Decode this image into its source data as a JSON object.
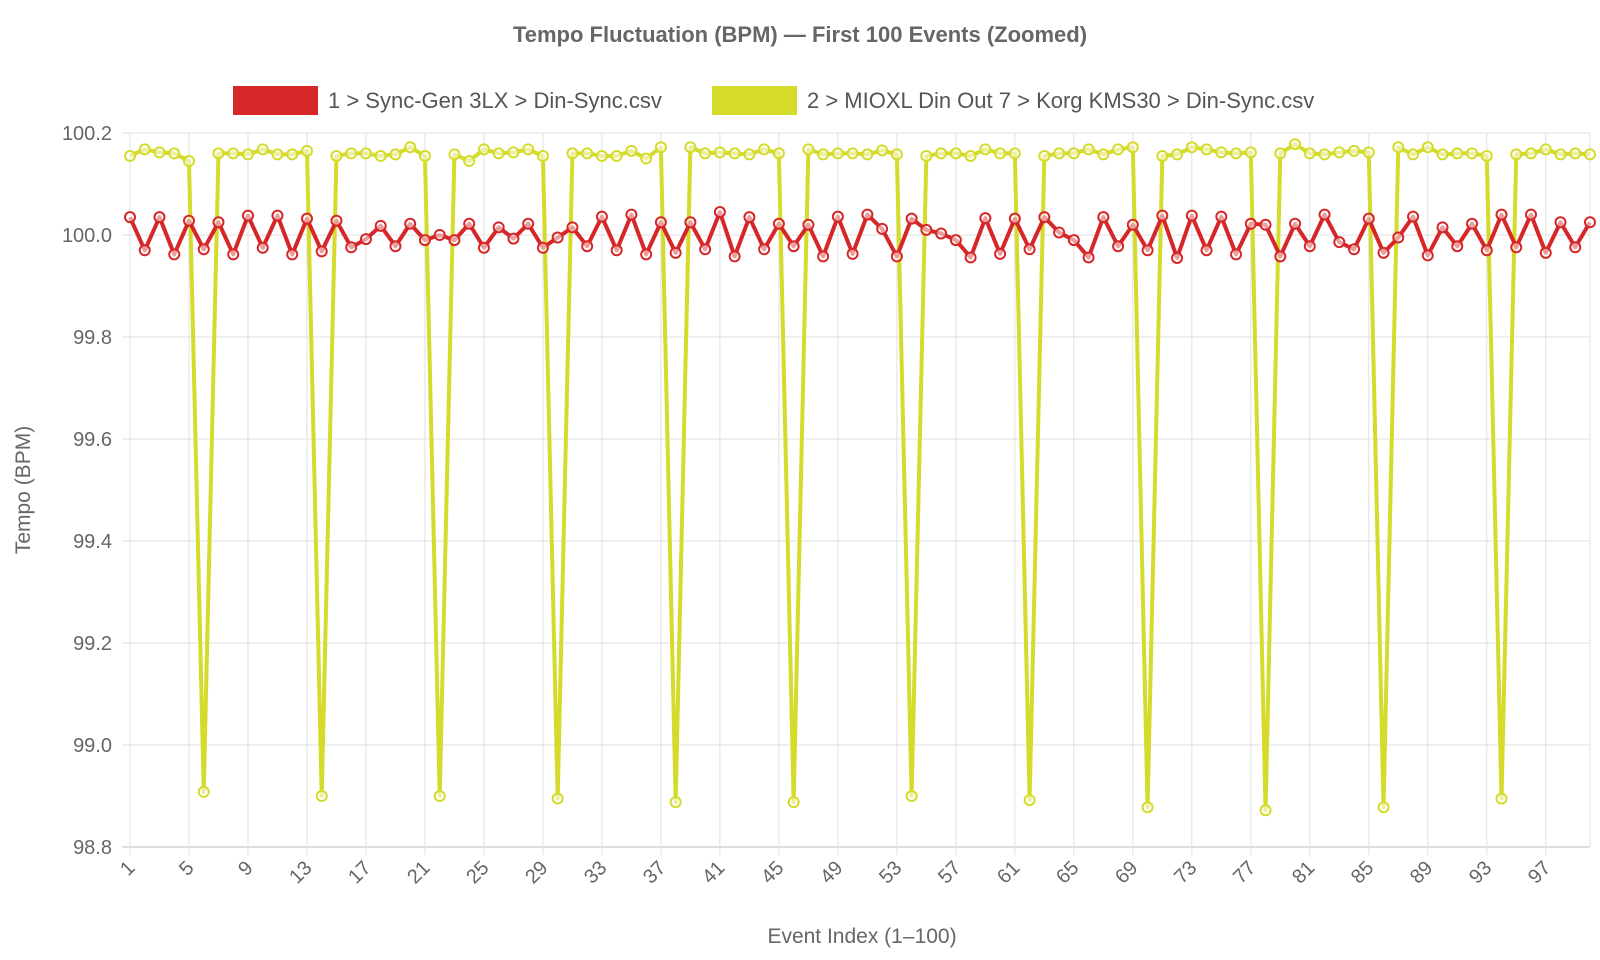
{
  "chart_data": {
    "type": "line",
    "title": "Tempo Fluctuation (BPM) — First 100 Events (Zoomed)",
    "xlabel": "Event Index (1–100)",
    "ylabel": "Tempo (BPM)",
    "ylim": [
      98.8,
      100.2
    ],
    "yticks": [
      "100.2",
      "100.0",
      "99.8",
      "99.6",
      "99.4",
      "99.2",
      "99.0",
      "98.8"
    ],
    "xtick_labels": [
      "1",
      "5",
      "9",
      "13",
      "17",
      "21",
      "25",
      "29",
      "33",
      "37",
      "41",
      "45",
      "49",
      "53",
      "57",
      "61",
      "65",
      "69",
      "73",
      "77",
      "81",
      "85",
      "89",
      "93",
      "97"
    ],
    "x": [
      1,
      2,
      3,
      4,
      5,
      6,
      7,
      8,
      9,
      10,
      11,
      12,
      13,
      14,
      15,
      16,
      17,
      18,
      19,
      20,
      21,
      22,
      23,
      24,
      25,
      26,
      27,
      28,
      29,
      30,
      31,
      32,
      33,
      34,
      35,
      36,
      37,
      38,
      39,
      40,
      41,
      42,
      43,
      44,
      45,
      46,
      47,
      48,
      49,
      50,
      51,
      52,
      53,
      54,
      55,
      56,
      57,
      58,
      59,
      60,
      61,
      62,
      63,
      64,
      65,
      66,
      67,
      68,
      69,
      70,
      71,
      72,
      73,
      74,
      75,
      76,
      77,
      78,
      79,
      80,
      81,
      82,
      83,
      84,
      85,
      86,
      87,
      88,
      89,
      90,
      91,
      92,
      93,
      94,
      95,
      96,
      97,
      98,
      99,
      100
    ],
    "grid": true,
    "legend_position": "top",
    "series": [
      {
        "name": "1 > Sync-Gen 3LX > Din-Sync.csv",
        "color": "#d62728",
        "values": [
          100.035,
          99.97,
          100.035,
          99.962,
          100.028,
          99.972,
          100.025,
          99.962,
          100.038,
          99.975,
          100.038,
          99.962,
          100.032,
          99.968,
          100.028,
          99.976,
          99.992,
          100.018,
          99.978,
          100.022,
          99.99,
          100.0,
          99.99,
          100.022,
          99.975,
          100.015,
          99.993,
          100.022,
          99.975,
          99.995,
          100.015,
          99.978,
          100.036,
          99.97,
          100.04,
          99.962,
          100.025,
          99.965,
          100.025,
          99.972,
          100.045,
          99.958,
          100.035,
          99.972,
          100.022,
          99.978,
          100.02,
          99.958,
          100.036,
          99.963,
          100.04,
          100.012,
          99.958,
          100.032,
          100.01,
          100.003,
          99.99,
          99.956,
          100.033,
          99.963,
          100.032,
          99.972,
          100.035,
          100.005,
          99.99,
          99.956,
          100.035,
          99.978,
          100.02,
          99.97,
          100.038,
          99.955,
          100.038,
          99.97,
          100.036,
          99.962,
          100.022,
          100.02,
          99.958,
          100.022,
          99.978,
          100.04,
          99.986,
          99.972,
          100.032,
          99.965,
          99.995,
          100.036,
          99.96,
          100.015,
          99.978,
          100.022,
          99.97,
          100.04,
          99.976,
          100.04,
          99.965,
          100.025,
          99.976,
          100.025
        ]
      },
      {
        "name": "2 > MIOXL Din Out 7 > Korg KMS30 > Din-Sync.csv",
        "color": "#d4db2a",
        "values": [
          100.155,
          100.168,
          100.162,
          100.16,
          100.145,
          98.908,
          100.16,
          100.16,
          100.158,
          100.168,
          100.158,
          100.158,
          100.165,
          98.9,
          100.155,
          100.16,
          100.16,
          100.155,
          100.158,
          100.172,
          100.155,
          98.9,
          100.158,
          100.145,
          100.168,
          100.16,
          100.162,
          100.168,
          100.155,
          98.895,
          100.16,
          100.16,
          100.155,
          100.155,
          100.165,
          100.15,
          100.172,
          98.888,
          100.172,
          100.16,
          100.162,
          100.16,
          100.158,
          100.168,
          100.16,
          98.888,
          100.168,
          100.158,
          100.16,
          100.16,
          100.158,
          100.166,
          100.158,
          98.9,
          100.155,
          100.16,
          100.16,
          100.155,
          100.168,
          100.16,
          100.16,
          98.892,
          100.155,
          100.16,
          100.16,
          100.168,
          100.158,
          100.168,
          100.172,
          98.878,
          100.155,
          100.158,
          100.172,
          100.168,
          100.162,
          100.16,
          100.162,
          98.872,
          100.16,
          100.178,
          100.16,
          100.158,
          100.162,
          100.165,
          100.162,
          98.878,
          100.172,
          100.158,
          100.172,
          100.158,
          100.16,
          100.16,
          100.155,
          98.895,
          100.158,
          100.16,
          100.168,
          100.158,
          100.16,
          100.158
        ]
      }
    ]
  }
}
